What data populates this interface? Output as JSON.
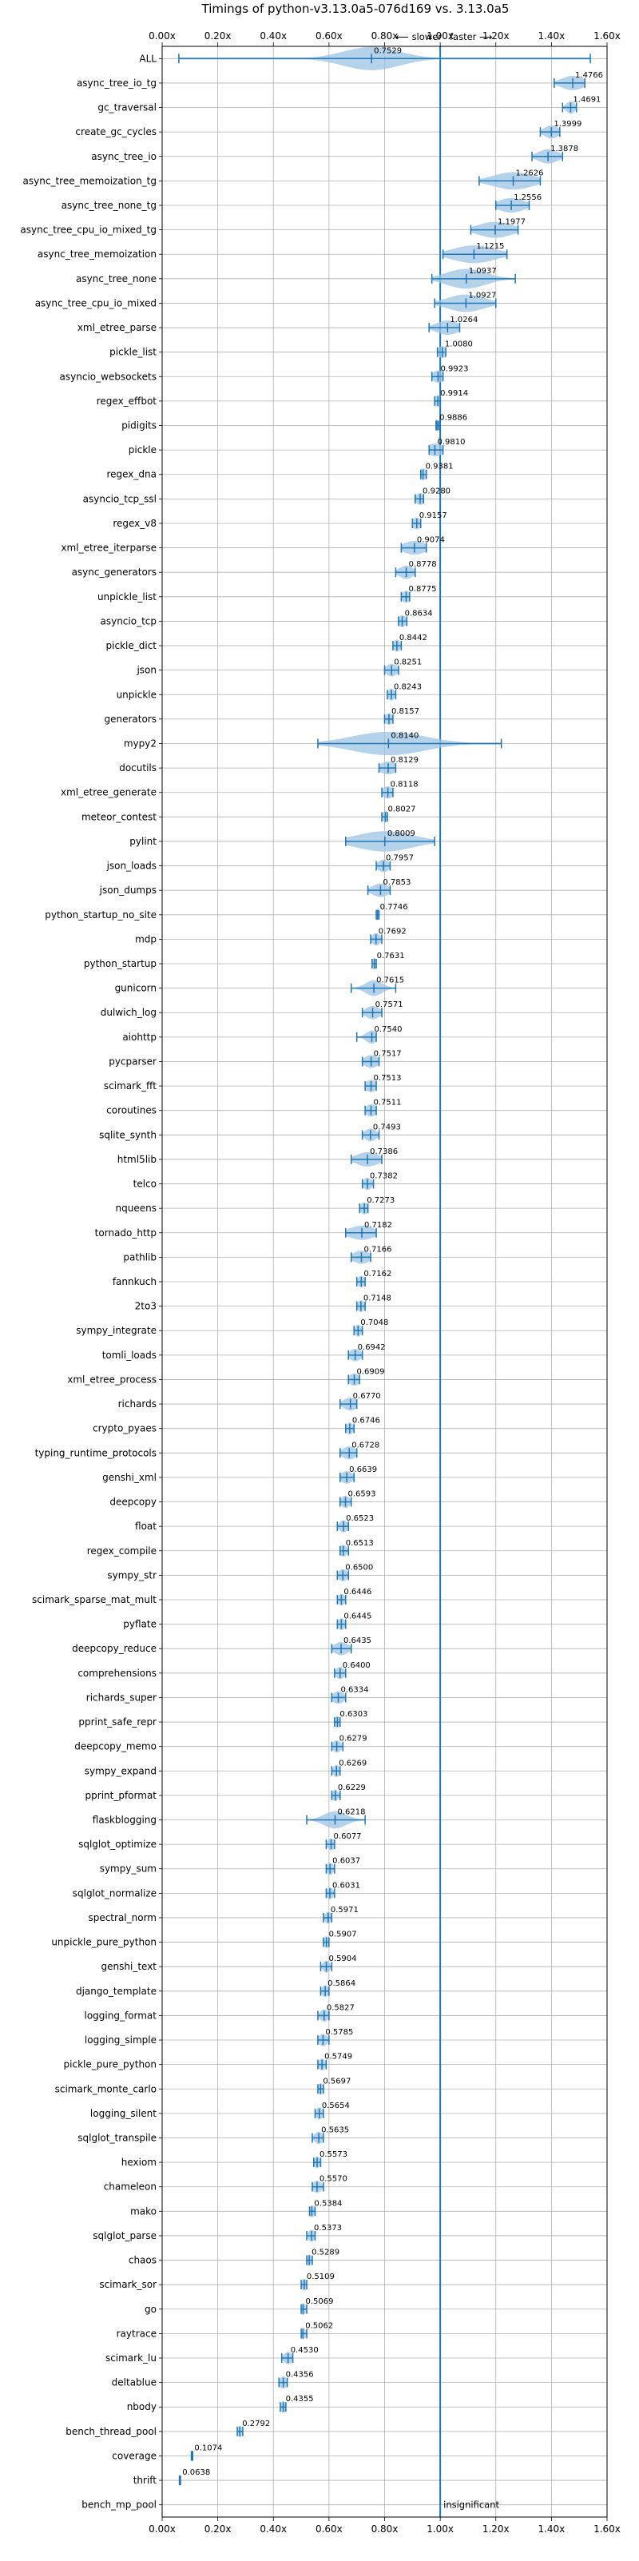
{
  "chart_data": {
    "type": "violin",
    "title": "Timings of python-v3.13.0a5-076d169 vs. 3.13.0a5",
    "xlabel": "",
    "ylabel": "",
    "xlim": [
      0.0,
      1.6
    ],
    "xticks": [
      "0.00x",
      "0.20x",
      "0.40x",
      "0.60x",
      "0.80x",
      "1.00x",
      "1.20x",
      "1.40x",
      "1.60x"
    ],
    "grid": true,
    "reference_line": 1.0,
    "direction_labels": {
      "slower": "⟵ slower",
      "faster": "faster ⟶"
    },
    "insignificant_label": "insignificant",
    "benchmarks": [
      {
        "name": "ALL",
        "value": 0.7529,
        "lo": 0.06,
        "hi": 1.54,
        "spread": 0.1,
        "label": "0.7529"
      },
      {
        "name": "async_tree_io_tg",
        "value": 1.4766,
        "lo": 1.41,
        "hi": 1.52,
        "spread": 0.04,
        "label": "1.4766"
      },
      {
        "name": "gc_traversal",
        "value": 1.4691,
        "lo": 1.44,
        "hi": 1.49,
        "spread": 0.015,
        "label": "1.4691"
      },
      {
        "name": "create_gc_cycles",
        "value": 1.3999,
        "lo": 1.36,
        "hi": 1.43,
        "spread": 0.025,
        "label": "1.3999"
      },
      {
        "name": "async_tree_io",
        "value": 1.3878,
        "lo": 1.33,
        "hi": 1.44,
        "spread": 0.035,
        "label": "1.3878"
      },
      {
        "name": "async_tree_memoization_tg",
        "value": 1.2626,
        "lo": 1.14,
        "hi": 1.36,
        "spread": 0.07,
        "label": "1.2626"
      },
      {
        "name": "async_tree_none_tg",
        "value": 1.2556,
        "lo": 1.2,
        "hi": 1.32,
        "spread": 0.045,
        "label": "1.2556"
      },
      {
        "name": "async_tree_cpu_io_mixed_tg",
        "value": 1.1977,
        "lo": 1.11,
        "hi": 1.28,
        "spread": 0.06,
        "label": "1.1977"
      },
      {
        "name": "async_tree_memoization",
        "value": 1.1215,
        "lo": 1.01,
        "hi": 1.24,
        "spread": 0.075,
        "label": "1.1215"
      },
      {
        "name": "async_tree_none",
        "value": 1.0937,
        "lo": 0.97,
        "hi": 1.27,
        "spread": 0.07,
        "label": "1.0937"
      },
      {
        "name": "async_tree_cpu_io_mixed",
        "value": 1.0927,
        "lo": 0.98,
        "hi": 1.2,
        "spread": 0.065,
        "label": "1.0927"
      },
      {
        "name": "xml_etree_parse",
        "value": 1.0264,
        "lo": 0.96,
        "hi": 1.07,
        "spread": 0.04,
        "label": "1.0264"
      },
      {
        "name": "pickle_list",
        "value": 1.008,
        "lo": 0.99,
        "hi": 1.02,
        "spread": 0.02,
        "label": "1.0080"
      },
      {
        "name": "asyncio_websockets",
        "value": 0.9923,
        "lo": 0.97,
        "hi": 1.01,
        "spread": 0.02,
        "label": "0.9923"
      },
      {
        "name": "regex_effbot",
        "value": 0.9914,
        "lo": 0.98,
        "hi": 1.0,
        "spread": 0.015,
        "label": "0.9914"
      },
      {
        "name": "pidigits",
        "value": 0.9886,
        "lo": 0.985,
        "hi": 0.995,
        "spread": 0.008,
        "label": "0.9886"
      },
      {
        "name": "pickle",
        "value": 0.981,
        "lo": 0.96,
        "hi": 1.01,
        "spread": 0.03,
        "label": "0.9810"
      },
      {
        "name": "regex_dna",
        "value": 0.9381,
        "lo": 0.93,
        "hi": 0.95,
        "spread": 0.012,
        "label": "0.9381"
      },
      {
        "name": "asyncio_tcp_ssl",
        "value": 0.928,
        "lo": 0.91,
        "hi": 0.94,
        "spread": 0.015,
        "label": "0.9280"
      },
      {
        "name": "regex_v8",
        "value": 0.9157,
        "lo": 0.9,
        "hi": 0.93,
        "spread": 0.015,
        "label": "0.9157"
      },
      {
        "name": "xml_etree_iterparse",
        "value": 0.9074,
        "lo": 0.86,
        "hi": 0.95,
        "spread": 0.04,
        "label": "0.9074"
      },
      {
        "name": "async_generators",
        "value": 0.8778,
        "lo": 0.84,
        "hi": 0.91,
        "spread": 0.025,
        "label": "0.8778"
      },
      {
        "name": "unpickle_list",
        "value": 0.8775,
        "lo": 0.86,
        "hi": 0.89,
        "spread": 0.015,
        "label": "0.8775"
      },
      {
        "name": "asyncio_tcp",
        "value": 0.8634,
        "lo": 0.85,
        "hi": 0.88,
        "spread": 0.015,
        "label": "0.8634"
      },
      {
        "name": "pickle_dict",
        "value": 0.8442,
        "lo": 0.83,
        "hi": 0.86,
        "spread": 0.012,
        "label": "0.8442"
      },
      {
        "name": "json",
        "value": 0.8251,
        "lo": 0.8,
        "hi": 0.85,
        "spread": 0.02,
        "label": "0.8251"
      },
      {
        "name": "unpickle",
        "value": 0.8243,
        "lo": 0.81,
        "hi": 0.84,
        "spread": 0.012,
        "label": "0.8243"
      },
      {
        "name": "generators",
        "value": 0.8157,
        "lo": 0.8,
        "hi": 0.83,
        "spread": 0.012,
        "label": "0.8157"
      },
      {
        "name": "mypy2",
        "value": 0.814,
        "lo": 0.56,
        "hi": 1.22,
        "spread": 0.13,
        "label": "0.8140"
      },
      {
        "name": "docutils",
        "value": 0.8129,
        "lo": 0.78,
        "hi": 0.84,
        "spread": 0.03,
        "label": "0.8129"
      },
      {
        "name": "xml_etree_generate",
        "value": 0.8118,
        "lo": 0.79,
        "hi": 0.83,
        "spread": 0.02,
        "label": "0.8118"
      },
      {
        "name": "meteor_contest",
        "value": 0.8027,
        "lo": 0.79,
        "hi": 0.81,
        "spread": 0.01,
        "label": "0.8027"
      },
      {
        "name": "pylint",
        "value": 0.8009,
        "lo": 0.66,
        "hi": 0.98,
        "spread": 0.1,
        "label": "0.8009"
      },
      {
        "name": "json_loads",
        "value": 0.7957,
        "lo": 0.77,
        "hi": 0.82,
        "spread": 0.02,
        "label": "0.7957"
      },
      {
        "name": "json_dumps",
        "value": 0.7853,
        "lo": 0.74,
        "hi": 0.82,
        "spread": 0.03,
        "label": "0.7853"
      },
      {
        "name": "python_startup_no_site",
        "value": 0.7746,
        "lo": 0.77,
        "hi": 0.78,
        "spread": 0.006,
        "label": "0.7746"
      },
      {
        "name": "mdp",
        "value": 0.7692,
        "lo": 0.75,
        "hi": 0.79,
        "spread": 0.015,
        "label": "0.7692"
      },
      {
        "name": "python_startup",
        "value": 0.7631,
        "lo": 0.755,
        "hi": 0.77,
        "spread": 0.008,
        "label": "0.7631"
      },
      {
        "name": "gunicorn",
        "value": 0.7615,
        "lo": 0.68,
        "hi": 0.84,
        "spread": 0.03,
        "label": "0.7615"
      },
      {
        "name": "dulwich_log",
        "value": 0.7571,
        "lo": 0.72,
        "hi": 0.79,
        "spread": 0.025,
        "label": "0.7571"
      },
      {
        "name": "aiohttp",
        "value": 0.754,
        "lo": 0.7,
        "hi": 0.77,
        "spread": 0.02,
        "label": "0.7540"
      },
      {
        "name": "pycparser",
        "value": 0.7517,
        "lo": 0.72,
        "hi": 0.78,
        "spread": 0.025,
        "label": "0.7517"
      },
      {
        "name": "scimark_fft",
        "value": 0.7513,
        "lo": 0.73,
        "hi": 0.77,
        "spread": 0.02,
        "label": "0.7513"
      },
      {
        "name": "coroutines",
        "value": 0.7511,
        "lo": 0.73,
        "hi": 0.77,
        "spread": 0.02,
        "label": "0.7511"
      },
      {
        "name": "sqlite_synth",
        "value": 0.7493,
        "lo": 0.72,
        "hi": 0.78,
        "spread": 0.02,
        "label": "0.7493"
      },
      {
        "name": "html5lib",
        "value": 0.7386,
        "lo": 0.68,
        "hi": 0.79,
        "spread": 0.04,
        "label": "0.7386"
      },
      {
        "name": "telco",
        "value": 0.7382,
        "lo": 0.72,
        "hi": 0.76,
        "spread": 0.015,
        "label": "0.7382"
      },
      {
        "name": "nqueens",
        "value": 0.7273,
        "lo": 0.71,
        "hi": 0.74,
        "spread": 0.015,
        "label": "0.7273"
      },
      {
        "name": "tornado_http",
        "value": 0.7182,
        "lo": 0.66,
        "hi": 0.77,
        "spread": 0.045,
        "label": "0.7182"
      },
      {
        "name": "pathlib",
        "value": 0.7166,
        "lo": 0.68,
        "hi": 0.75,
        "spread": 0.03,
        "label": "0.7166"
      },
      {
        "name": "fannkuch",
        "value": 0.7162,
        "lo": 0.7,
        "hi": 0.73,
        "spread": 0.012,
        "label": "0.7162"
      },
      {
        "name": "2to3",
        "value": 0.7148,
        "lo": 0.7,
        "hi": 0.73,
        "spread": 0.012,
        "label": "0.7148"
      },
      {
        "name": "sympy_integrate",
        "value": 0.7048,
        "lo": 0.69,
        "hi": 0.72,
        "spread": 0.012,
        "label": "0.7048"
      },
      {
        "name": "tomli_loads",
        "value": 0.6942,
        "lo": 0.67,
        "hi": 0.72,
        "spread": 0.02,
        "label": "0.6942"
      },
      {
        "name": "xml_etree_process",
        "value": 0.6909,
        "lo": 0.67,
        "hi": 0.71,
        "spread": 0.02,
        "label": "0.6909"
      },
      {
        "name": "richards",
        "value": 0.677,
        "lo": 0.64,
        "hi": 0.7,
        "spread": 0.025,
        "label": "0.6770"
      },
      {
        "name": "crypto_pyaes",
        "value": 0.6746,
        "lo": 0.66,
        "hi": 0.69,
        "spread": 0.012,
        "label": "0.6746"
      },
      {
        "name": "typing_runtime_protocols",
        "value": 0.6728,
        "lo": 0.64,
        "hi": 0.7,
        "spread": 0.025,
        "label": "0.6728"
      },
      {
        "name": "genshi_xml",
        "value": 0.6639,
        "lo": 0.64,
        "hi": 0.69,
        "spread": 0.02,
        "label": "0.6639"
      },
      {
        "name": "deepcopy",
        "value": 0.6593,
        "lo": 0.64,
        "hi": 0.68,
        "spread": 0.015,
        "label": "0.6593"
      },
      {
        "name": "float",
        "value": 0.6523,
        "lo": 0.63,
        "hi": 0.67,
        "spread": 0.015,
        "label": "0.6523"
      },
      {
        "name": "regex_compile",
        "value": 0.6513,
        "lo": 0.64,
        "hi": 0.67,
        "spread": 0.012,
        "label": "0.6513"
      },
      {
        "name": "sympy_str",
        "value": 0.65,
        "lo": 0.63,
        "hi": 0.67,
        "spread": 0.015,
        "label": "0.6500"
      },
      {
        "name": "scimark_sparse_mat_mult",
        "value": 0.6446,
        "lo": 0.63,
        "hi": 0.66,
        "spread": 0.012,
        "label": "0.6446"
      },
      {
        "name": "pyflate",
        "value": 0.6445,
        "lo": 0.63,
        "hi": 0.66,
        "spread": 0.012,
        "label": "0.6445"
      },
      {
        "name": "deepcopy_reduce",
        "value": 0.6435,
        "lo": 0.61,
        "hi": 0.68,
        "spread": 0.025,
        "label": "0.6435"
      },
      {
        "name": "comprehensions",
        "value": 0.64,
        "lo": 0.62,
        "hi": 0.66,
        "spread": 0.015,
        "label": "0.6400"
      },
      {
        "name": "richards_super",
        "value": 0.6334,
        "lo": 0.61,
        "hi": 0.66,
        "spread": 0.02,
        "label": "0.6334"
      },
      {
        "name": "pprint_safe_repr",
        "value": 0.6303,
        "lo": 0.62,
        "hi": 0.64,
        "spread": 0.01,
        "label": "0.6303"
      },
      {
        "name": "deepcopy_memo",
        "value": 0.6279,
        "lo": 0.61,
        "hi": 0.65,
        "spread": 0.015,
        "label": "0.6279"
      },
      {
        "name": "sympy_expand",
        "value": 0.6269,
        "lo": 0.61,
        "hi": 0.64,
        "spread": 0.012,
        "label": "0.6269"
      },
      {
        "name": "pprint_pformat",
        "value": 0.6229,
        "lo": 0.61,
        "hi": 0.64,
        "spread": 0.01,
        "label": "0.6229"
      },
      {
        "name": "flaskblogging",
        "value": 0.6218,
        "lo": 0.52,
        "hi": 0.73,
        "spread": 0.04,
        "label": "0.6218"
      },
      {
        "name": "sqlglot_optimize",
        "value": 0.6077,
        "lo": 0.59,
        "hi": 0.62,
        "spread": 0.012,
        "label": "0.6077"
      },
      {
        "name": "sympy_sum",
        "value": 0.6037,
        "lo": 0.59,
        "hi": 0.62,
        "spread": 0.012,
        "label": "0.6037"
      },
      {
        "name": "sqlglot_normalize",
        "value": 0.6031,
        "lo": 0.59,
        "hi": 0.62,
        "spread": 0.012,
        "label": "0.6031"
      },
      {
        "name": "spectral_norm",
        "value": 0.5971,
        "lo": 0.58,
        "hi": 0.61,
        "spread": 0.012,
        "label": "0.5971"
      },
      {
        "name": "unpickle_pure_python",
        "value": 0.5907,
        "lo": 0.58,
        "hi": 0.6,
        "spread": 0.01,
        "label": "0.5907"
      },
      {
        "name": "genshi_text",
        "value": 0.5904,
        "lo": 0.57,
        "hi": 0.61,
        "spread": 0.012,
        "label": "0.5904"
      },
      {
        "name": "django_template",
        "value": 0.5864,
        "lo": 0.57,
        "hi": 0.6,
        "spread": 0.012,
        "label": "0.5864"
      },
      {
        "name": "logging_format",
        "value": 0.5827,
        "lo": 0.56,
        "hi": 0.6,
        "spread": 0.015,
        "label": "0.5827"
      },
      {
        "name": "logging_simple",
        "value": 0.5785,
        "lo": 0.56,
        "hi": 0.6,
        "spread": 0.015,
        "label": "0.5785"
      },
      {
        "name": "pickle_pure_python",
        "value": 0.5749,
        "lo": 0.56,
        "hi": 0.59,
        "spread": 0.012,
        "label": "0.5749"
      },
      {
        "name": "scimark_monte_carlo",
        "value": 0.5697,
        "lo": 0.56,
        "hi": 0.58,
        "spread": 0.01,
        "label": "0.5697"
      },
      {
        "name": "logging_silent",
        "value": 0.5654,
        "lo": 0.55,
        "hi": 0.58,
        "spread": 0.012,
        "label": "0.5654"
      },
      {
        "name": "sqlglot_transpile",
        "value": 0.5635,
        "lo": 0.54,
        "hi": 0.58,
        "spread": 0.015,
        "label": "0.5635"
      },
      {
        "name": "hexiom",
        "value": 0.5573,
        "lo": 0.545,
        "hi": 0.57,
        "spread": 0.01,
        "label": "0.5573"
      },
      {
        "name": "chameleon",
        "value": 0.557,
        "lo": 0.54,
        "hi": 0.58,
        "spread": 0.015,
        "label": "0.5570"
      },
      {
        "name": "mako",
        "value": 0.5384,
        "lo": 0.53,
        "hi": 0.55,
        "spread": 0.01,
        "label": "0.5384"
      },
      {
        "name": "sqlglot_parse",
        "value": 0.5373,
        "lo": 0.52,
        "hi": 0.55,
        "spread": 0.012,
        "label": "0.5373"
      },
      {
        "name": "chaos",
        "value": 0.5289,
        "lo": 0.52,
        "hi": 0.54,
        "spread": 0.01,
        "label": "0.5289"
      },
      {
        "name": "scimark_sor",
        "value": 0.5109,
        "lo": 0.5,
        "hi": 0.52,
        "spread": 0.01,
        "label": "0.5109"
      },
      {
        "name": "go",
        "value": 0.5069,
        "lo": 0.5,
        "hi": 0.52,
        "spread": 0.01,
        "label": "0.5069"
      },
      {
        "name": "raytrace",
        "value": 0.5062,
        "lo": 0.5,
        "hi": 0.52,
        "spread": 0.01,
        "label": "0.5062"
      },
      {
        "name": "scimark_lu",
        "value": 0.453,
        "lo": 0.43,
        "hi": 0.47,
        "spread": 0.015,
        "label": "0.4530"
      },
      {
        "name": "deltablue",
        "value": 0.4356,
        "lo": 0.42,
        "hi": 0.45,
        "spread": 0.015,
        "label": "0.4356"
      },
      {
        "name": "nbody",
        "value": 0.4355,
        "lo": 0.425,
        "hi": 0.445,
        "spread": 0.01,
        "label": "0.4355"
      },
      {
        "name": "bench_thread_pool",
        "value": 0.2792,
        "lo": 0.27,
        "hi": 0.29,
        "spread": 0.008,
        "label": "0.2792"
      },
      {
        "name": "coverage",
        "value": 0.1074,
        "lo": 0.105,
        "hi": 0.11,
        "spread": 0.004,
        "label": "0.1074"
      },
      {
        "name": "thrift",
        "value": 0.0638,
        "lo": 0.062,
        "hi": 0.066,
        "spread": 0.003,
        "label": "0.0638"
      },
      {
        "name": "bench_mp_pool",
        "value": null,
        "lo": null,
        "hi": null,
        "spread": 0,
        "label": "insignificant"
      }
    ]
  }
}
